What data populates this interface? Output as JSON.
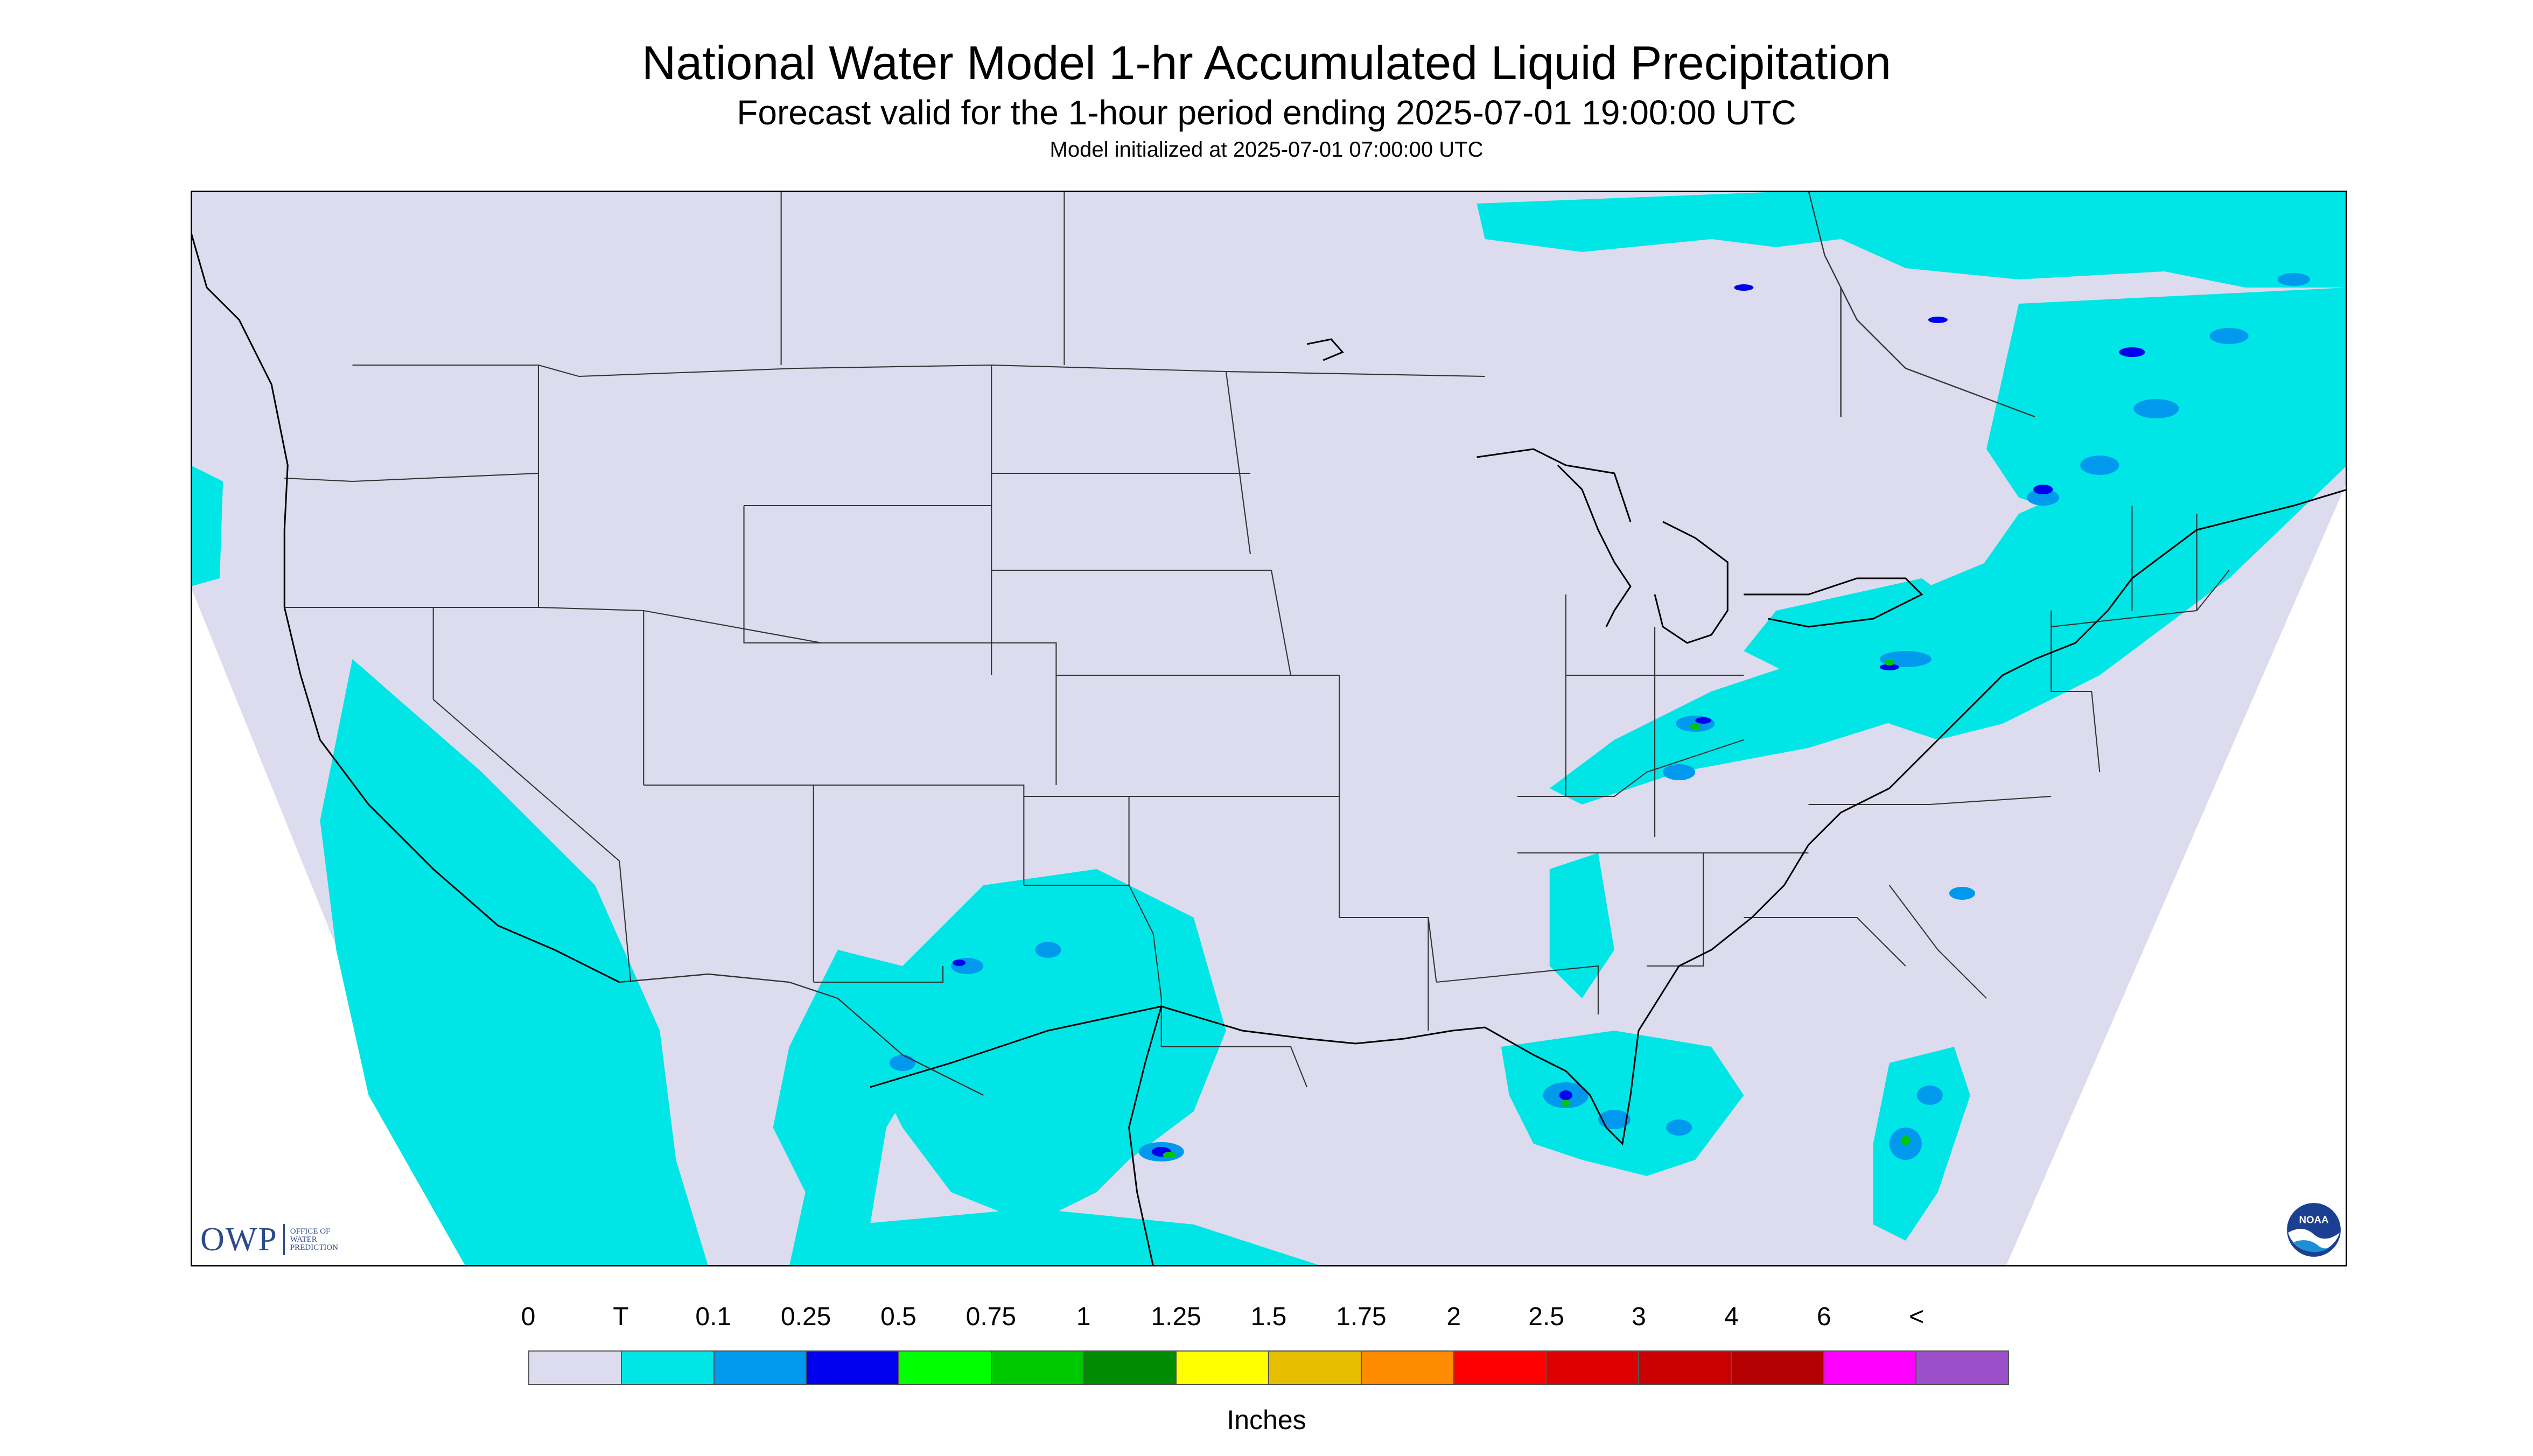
{
  "header": {
    "title": "National Water Model 1-hr Accumulated Liquid Precipitation",
    "subtitle": "Forecast valid for the 1-hour period ending 2025-07-01 19:00:00 UTC",
    "init": "Model initialized at 2025-07-01 07:00:00 UTC"
  },
  "logos": {
    "owp_abbrev": "OWP",
    "owp_line1": "OFFICE OF",
    "owp_line2": "WATER",
    "owp_line3": "PREDICTION",
    "noaa": "NOAA"
  },
  "legend": {
    "labels": [
      "0",
      "T",
      "0.1",
      "0.25",
      "0.5",
      "0.75",
      "1",
      "1.25",
      "1.5",
      "1.75",
      "2",
      "2.5",
      "3",
      "4",
      "6",
      "<"
    ],
    "colors": [
      "#dcdcee",
      "#00e6e6",
      "#0099ee",
      "#0000ee",
      "#00ff00",
      "#00c800",
      "#008c00",
      "#ffff00",
      "#e6be00",
      "#ff8c00",
      "#ff0000",
      "#dc0000",
      "#c80000",
      "#b40000",
      "#ff00ff",
      "#9b4fc8"
    ],
    "units": "Inches"
  },
  "map": {
    "background_color": "#dcdcee",
    "border_color": "#000000"
  }
}
